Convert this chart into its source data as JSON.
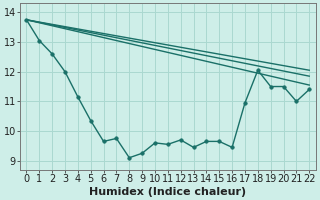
{
  "background_color": "#ceeee8",
  "grid_color": "#aad8d0",
  "line_color": "#1a7068",
  "xlabel": "Humidex (Indice chaleur)",
  "xlim": [
    -0.5,
    22.5
  ],
  "ylim": [
    8.7,
    14.3
  ],
  "yticks": [
    9,
    10,
    11,
    12,
    13,
    14
  ],
  "xticks": [
    0,
    1,
    2,
    3,
    4,
    5,
    6,
    7,
    8,
    9,
    10,
    11,
    12,
    13,
    14,
    15,
    16,
    17,
    18,
    19,
    20,
    21,
    22
  ],
  "line1_x": [
    0,
    1,
    2,
    3,
    4,
    5,
    6,
    7,
    8,
    9,
    10,
    11,
    12,
    13,
    14,
    15,
    16,
    17,
    18,
    19,
    20,
    21,
    22
  ],
  "line1_y": [
    13.75,
    13.05,
    12.6,
    12.0,
    11.15,
    10.35,
    9.65,
    9.75,
    9.1,
    9.25,
    9.6,
    9.55,
    9.7,
    9.45,
    9.65,
    9.65,
    9.45,
    10.95,
    12.05,
    11.5,
    11.5,
    11.0,
    11.4
  ],
  "straight_line1": [
    [
      0,
      13.75
    ],
    [
      22,
      12.05
    ]
  ],
  "straight_line2": [
    [
      0,
      13.75
    ],
    [
      3,
      12.6
    ],
    [
      22,
      11.85
    ]
  ],
  "straight_line3": [
    [
      0,
      13.75
    ],
    [
      3,
      12.0
    ],
    [
      22,
      11.55
    ]
  ],
  "marker_size": 2.5,
  "line_width": 1.0,
  "font_size": 7.5,
  "tick_font_size": 7.0,
  "xlabel_font_size": 8.0
}
